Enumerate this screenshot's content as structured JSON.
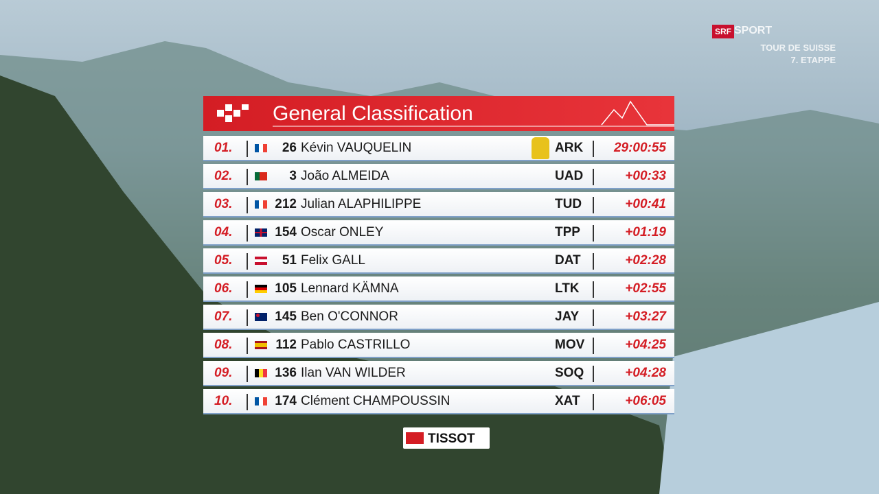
{
  "header": {
    "title": "General Classification"
  },
  "broadcaster": {
    "logo": "SRF",
    "channel": "SPORT",
    "race": "TOUR DE SUISSE",
    "stage": "7. ETAPPE"
  },
  "table": {
    "rows": [
      [
        "01.",
        "26",
        "Kévin VAUQUELIN",
        "ARK",
        "29:00:55"
      ],
      [
        "02.",
        "3",
        "João ALMEIDA",
        "UAD",
        "+00:33"
      ],
      [
        "03.",
        "212",
        "Julian ALAPHILIPPE",
        "TUD",
        "+00:41"
      ],
      [
        "04.",
        "154",
        "Oscar ONLEY",
        "TPP",
        "+01:19"
      ],
      [
        "05.",
        "51",
        "Felix GALL",
        "DAT",
        "+02:28"
      ],
      [
        "06.",
        "105",
        "Lennard KÄMNA",
        "LTK",
        "+02:55"
      ],
      [
        "07.",
        "145",
        "Ben O'CONNOR",
        "JAY",
        "+03:27"
      ],
      [
        "08.",
        "112",
        "Pablo CASTRILLO",
        "MOV",
        "+04:25"
      ],
      [
        "09.",
        "136",
        "Ilan VAN WILDER",
        "SOQ",
        "+04:28"
      ],
      [
        "10.",
        "174",
        "Clément CHAMPOUSSIN",
        "XAT",
        "+06:05"
      ]
    ]
  },
  "sponsor": {
    "name": "TISSOT"
  }
}
